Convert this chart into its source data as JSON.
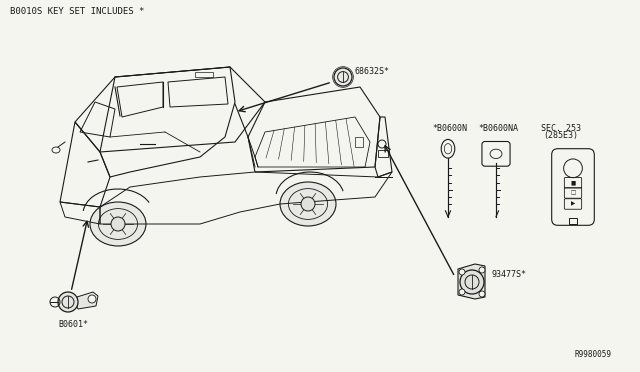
{
  "bg_color": "#f5f5f0",
  "line_color": "#1a1a1a",
  "text_color": "#1a1a1a",
  "diagram_ref": "R9980059",
  "header_text": "B0010S KEY SET INCLUDES *",
  "labels": {
    "ignition_cylinder": "68632S*",
    "door_lock": "B0601*",
    "trunk_lock": "93477S*",
    "key1": "*B0600N",
    "key2": "*B0600NA",
    "sec_ref1": "SEC. 253",
    "sec_ref2": "(285E3)"
  },
  "font_size_small": 6.0,
  "font_size_header": 6.5,
  "font_size_ref": 5.5
}
